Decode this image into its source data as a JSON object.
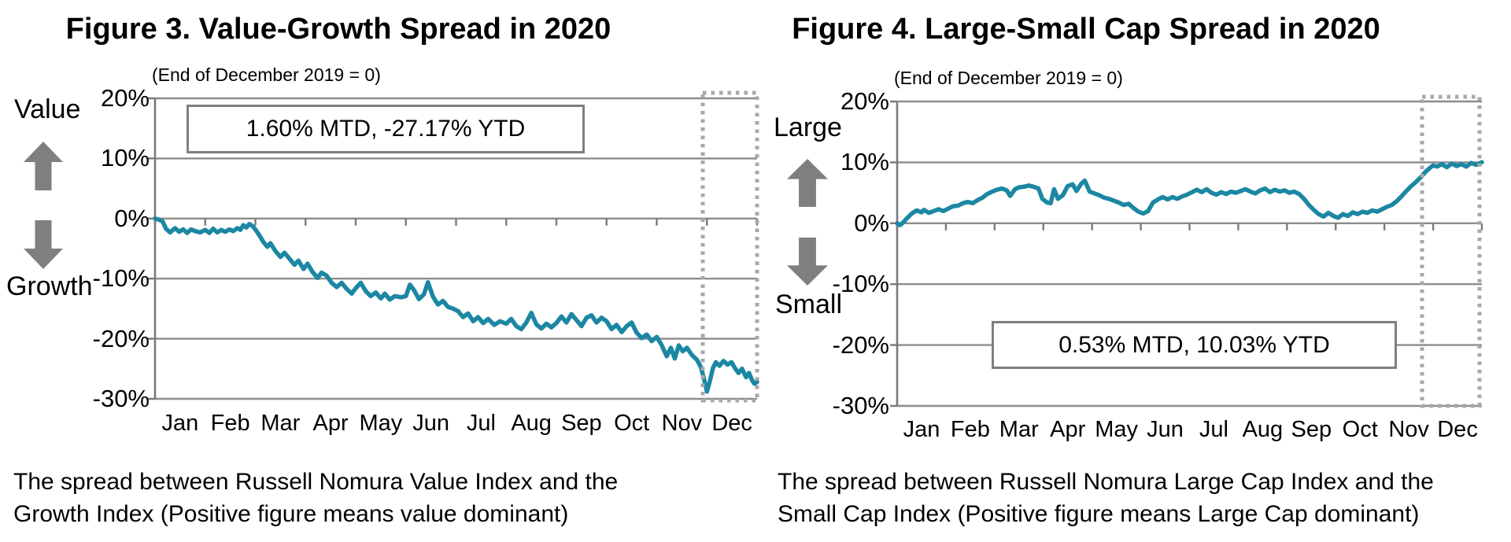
{
  "figures": [
    {
      "title": "Figure 3. Value-Growth Spread in 2020",
      "subtitle": "(End of December 2019 = 0)",
      "upper_label": "Value",
      "lower_label": "Growth",
      "annotation": "1.60% MTD, -27.17% YTD",
      "caption_line1": "The spread between Russell Nomura Value Index and the",
      "caption_line2": "Growth Index (Positive figure means value dominant)"
    },
    {
      "title": "Figure 4. Large-Small Cap Spread in 2020",
      "subtitle": "(End of December 2019 = 0)",
      "upper_label": "Large",
      "lower_label": "Small",
      "annotation": "0.53% MTD, 10.03% YTD",
      "caption_line1": "The spread between Russell Nomura Large Cap Index and the",
      "caption_line2": "Small Cap Index (Positive figure means Large Cap dominant)"
    }
  ],
  "colors": {
    "line": "#1b87a3",
    "gridline": "#8c8c8c",
    "axis": "#7a7a7a",
    "dotted_box": "#a8a8a8",
    "arrow": "#7f7f7f",
    "annotation_border": "#7f7f7f",
    "text": "#000000"
  },
  "chart_data": [
    {
      "type": "line",
      "title": "Figure 3. Value-Growth Spread in 2020",
      "subtitle": "(End of December 2019 = 0)",
      "series_name": "Russell Nomura Value Index minus Growth Index spread (%)",
      "x_unit": "months (0 = end of Dec 2019, 12 = end of Dec 2020)",
      "x_tick_labels": [
        "Jan",
        "Feb",
        "Mar",
        "Apr",
        "May",
        "Jun",
        "Jul",
        "Aug",
        "Sep",
        "Oct",
        "Nov",
        "Dec"
      ],
      "y_tick_labels": [
        "20%",
        "10%",
        "0%",
        "-10%",
        "-20%",
        "-30%"
      ],
      "y_ticks": [
        20,
        10,
        0,
        -10,
        -20,
        -30
      ],
      "ylim": [
        -30,
        20
      ],
      "grid": "horizontal",
      "legend": "none",
      "annotation": "1.60% MTD, -27.17% YTD",
      "highlight_box": "December (dotted rectangle)",
      "mtd_pct": 1.6,
      "ytd_pct": -27.17,
      "points": [
        [
          0,
          0
        ],
        [
          0.08,
          -0.2
        ],
        [
          0.15,
          -0.5
        ],
        [
          0.22,
          -1.7
        ],
        [
          0.3,
          -2.3
        ],
        [
          0.4,
          -1.6
        ],
        [
          0.48,
          -2.2
        ],
        [
          0.56,
          -1.8
        ],
        [
          0.64,
          -2.4
        ],
        [
          0.72,
          -1.8
        ],
        [
          0.8,
          -2.1
        ],
        [
          0.9,
          -2.3
        ],
        [
          1.0,
          -1.9
        ],
        [
          1.08,
          -2.4
        ],
        [
          1.16,
          -1.7
        ],
        [
          1.24,
          -2.3
        ],
        [
          1.32,
          -1.9
        ],
        [
          1.4,
          -2.2
        ],
        [
          1.48,
          -1.8
        ],
        [
          1.56,
          -2.1
        ],
        [
          1.64,
          -1.6
        ],
        [
          1.7,
          -1.9
        ],
        [
          1.76,
          -1.1
        ],
        [
          1.82,
          -1.5
        ],
        [
          1.88,
          -0.9
        ],
        [
          1.95,
          -1.3
        ],
        [
          2.0,
          -1.8
        ],
        [
          2.08,
          -2.8
        ],
        [
          2.16,
          -3.9
        ],
        [
          2.24,
          -4.7
        ],
        [
          2.3,
          -4.1
        ],
        [
          2.4,
          -5.4
        ],
        [
          2.5,
          -6.4
        ],
        [
          2.58,
          -5.7
        ],
        [
          2.68,
          -6.7
        ],
        [
          2.78,
          -7.7
        ],
        [
          2.86,
          -7.0
        ],
        [
          2.96,
          -8.4
        ],
        [
          3.04,
          -7.5
        ],
        [
          3.14,
          -8.9
        ],
        [
          3.24,
          -9.9
        ],
        [
          3.32,
          -9.0
        ],
        [
          3.42,
          -9.5
        ],
        [
          3.52,
          -10.7
        ],
        [
          3.62,
          -11.4
        ],
        [
          3.72,
          -10.7
        ],
        [
          3.82,
          -11.7
        ],
        [
          3.92,
          -12.5
        ],
        [
          4.0,
          -11.6
        ],
        [
          4.1,
          -10.7
        ],
        [
          4.2,
          -12.1
        ],
        [
          4.3,
          -12.9
        ],
        [
          4.4,
          -12.3
        ],
        [
          4.5,
          -13.3
        ],
        [
          4.58,
          -12.5
        ],
        [
          4.68,
          -13.5
        ],
        [
          4.78,
          -12.9
        ],
        [
          4.9,
          -13.1
        ],
        [
          5.0,
          -12.9
        ],
        [
          5.08,
          -11.0
        ],
        [
          5.16,
          -11.9
        ],
        [
          5.26,
          -13.4
        ],
        [
          5.36,
          -12.6
        ],
        [
          5.44,
          -10.6
        ],
        [
          5.54,
          -13.0
        ],
        [
          5.64,
          -14.3
        ],
        [
          5.74,
          -13.7
        ],
        [
          5.84,
          -14.7
        ],
        [
          5.94,
          -15.0
        ],
        [
          6.04,
          -15.4
        ],
        [
          6.14,
          -16.4
        ],
        [
          6.24,
          -15.8
        ],
        [
          6.34,
          -17.1
        ],
        [
          6.44,
          -16.4
        ],
        [
          6.54,
          -17.4
        ],
        [
          6.64,
          -16.7
        ],
        [
          6.76,
          -17.7
        ],
        [
          6.88,
          -17.1
        ],
        [
          7.0,
          -17.5
        ],
        [
          7.1,
          -16.7
        ],
        [
          7.2,
          -17.9
        ],
        [
          7.3,
          -18.4
        ],
        [
          7.4,
          -17.3
        ],
        [
          7.5,
          -15.7
        ],
        [
          7.6,
          -17.6
        ],
        [
          7.7,
          -18.3
        ],
        [
          7.8,
          -17.5
        ],
        [
          7.9,
          -18.1
        ],
        [
          8.0,
          -17.4
        ],
        [
          8.1,
          -16.3
        ],
        [
          8.2,
          -17.3
        ],
        [
          8.3,
          -15.9
        ],
        [
          8.4,
          -16.9
        ],
        [
          8.5,
          -17.9
        ],
        [
          8.6,
          -16.5
        ],
        [
          8.7,
          -16.1
        ],
        [
          8.8,
          -17.3
        ],
        [
          8.9,
          -16.5
        ],
        [
          9.0,
          -17.1
        ],
        [
          9.1,
          -18.4
        ],
        [
          9.2,
          -17.7
        ],
        [
          9.3,
          -18.9
        ],
        [
          9.4,
          -17.9
        ],
        [
          9.5,
          -17.3
        ],
        [
          9.6,
          -19.0
        ],
        [
          9.7,
          -19.9
        ],
        [
          9.8,
          -19.3
        ],
        [
          9.9,
          -20.4
        ],
        [
          10.0,
          -19.7
        ],
        [
          10.1,
          -21.1
        ],
        [
          10.2,
          -22.9
        ],
        [
          10.28,
          -21.5
        ],
        [
          10.36,
          -23.3
        ],
        [
          10.44,
          -21.1
        ],
        [
          10.52,
          -22.1
        ],
        [
          10.6,
          -21.5
        ],
        [
          10.7,
          -22.7
        ],
        [
          10.8,
          -23.5
        ],
        [
          10.88,
          -24.7
        ],
        [
          10.94,
          -26.6
        ],
        [
          11.0,
          -28.8
        ],
        [
          11.06,
          -27.0
        ],
        [
          11.12,
          -24.9
        ],
        [
          11.18,
          -23.9
        ],
        [
          11.25,
          -24.5
        ],
        [
          11.33,
          -23.7
        ],
        [
          11.41,
          -24.3
        ],
        [
          11.49,
          -23.9
        ],
        [
          11.56,
          -24.9
        ],
        [
          11.63,
          -25.7
        ],
        [
          11.7,
          -25.0
        ],
        [
          11.78,
          -26.4
        ],
        [
          11.84,
          -25.7
        ],
        [
          11.9,
          -26.9
        ],
        [
          11.95,
          -27.5
        ],
        [
          12.0,
          -27.17
        ]
      ]
    },
    {
      "type": "line",
      "title": "Figure 4. Large-Small Cap Spread in 2020",
      "subtitle": "(End of December 2019 = 0)",
      "series_name": "Russell Nomura Large Cap Index minus Small Cap Index spread (%)",
      "x_unit": "months (0 = end of Dec 2019, 12 = end of Dec 2020)",
      "x_tick_labels": [
        "Jan",
        "Feb",
        "Mar",
        "Apr",
        "May",
        "Jun",
        "Jul",
        "Aug",
        "Sep",
        "Oct",
        "Nov",
        "Dec"
      ],
      "y_tick_labels": [
        "20%",
        "10%",
        "0%",
        "-10%",
        "-20%",
        "-30%"
      ],
      "y_ticks": [
        20,
        10,
        0,
        -10,
        -20,
        -30
      ],
      "ylim": [
        -30,
        20
      ],
      "grid": "horizontal",
      "legend": "none",
      "annotation": "0.53% MTD, 10.03% YTD",
      "highlight_box": "December (dotted rectangle)",
      "mtd_pct": 0.53,
      "ytd_pct": 10.03,
      "points": [
        [
          0,
          0
        ],
        [
          0.06,
          -0.3
        ],
        [
          0.12,
          0.1
        ],
        [
          0.2,
          0.8
        ],
        [
          0.3,
          1.6
        ],
        [
          0.4,
          2.1
        ],
        [
          0.5,
          1.8
        ],
        [
          0.55,
          2.2
        ],
        [
          0.65,
          1.7
        ],
        [
          0.75,
          2.0
        ],
        [
          0.85,
          2.3
        ],
        [
          0.95,
          2.0
        ],
        [
          1.05,
          2.4
        ],
        [
          1.15,
          2.8
        ],
        [
          1.25,
          2.9
        ],
        [
          1.35,
          3.3
        ],
        [
          1.45,
          3.5
        ],
        [
          1.55,
          3.3
        ],
        [
          1.65,
          3.8
        ],
        [
          1.75,
          4.2
        ],
        [
          1.85,
          4.8
        ],
        [
          1.95,
          5.2
        ],
        [
          2.05,
          5.5
        ],
        [
          2.15,
          5.7
        ],
        [
          2.25,
          5.4
        ],
        [
          2.32,
          4.5
        ],
        [
          2.42,
          5.6
        ],
        [
          2.5,
          5.9
        ],
        [
          2.6,
          6.0
        ],
        [
          2.7,
          6.2
        ],
        [
          2.8,
          6.0
        ],
        [
          2.9,
          5.7
        ],
        [
          2.98,
          4.0
        ],
        [
          3.08,
          3.4
        ],
        [
          3.15,
          3.3
        ],
        [
          3.22,
          5.6
        ],
        [
          3.3,
          4.0
        ],
        [
          3.4,
          4.6
        ],
        [
          3.5,
          6.1
        ],
        [
          3.6,
          6.4
        ],
        [
          3.68,
          5.3
        ],
        [
          3.78,
          6.5
        ],
        [
          3.85,
          7.0
        ],
        [
          3.95,
          5.2
        ],
        [
          4.05,
          4.9
        ],
        [
          4.15,
          4.6
        ],
        [
          4.25,
          4.2
        ],
        [
          4.35,
          4.0
        ],
        [
          4.45,
          3.7
        ],
        [
          4.55,
          3.4
        ],
        [
          4.65,
          3.0
        ],
        [
          4.75,
          3.2
        ],
        [
          4.85,
          2.5
        ],
        [
          4.95,
          1.9
        ],
        [
          5.05,
          1.6
        ],
        [
          5.15,
          2.0
        ],
        [
          5.25,
          3.4
        ],
        [
          5.35,
          3.9
        ],
        [
          5.45,
          4.3
        ],
        [
          5.55,
          3.9
        ],
        [
          5.65,
          4.3
        ],
        [
          5.75,
          4.0
        ],
        [
          5.85,
          4.4
        ],
        [
          5.95,
          4.7
        ],
        [
          6.05,
          5.1
        ],
        [
          6.15,
          5.5
        ],
        [
          6.25,
          5.1
        ],
        [
          6.35,
          5.6
        ],
        [
          6.45,
          5.0
        ],
        [
          6.55,
          4.7
        ],
        [
          6.65,
          5.1
        ],
        [
          6.75,
          4.8
        ],
        [
          6.85,
          5.2
        ],
        [
          6.95,
          5.0
        ],
        [
          7.05,
          5.3
        ],
        [
          7.15,
          5.6
        ],
        [
          7.25,
          5.2
        ],
        [
          7.35,
          4.9
        ],
        [
          7.45,
          5.4
        ],
        [
          7.55,
          5.7
        ],
        [
          7.65,
          5.1
        ],
        [
          7.75,
          5.5
        ],
        [
          7.85,
          5.2
        ],
        [
          7.95,
          5.4
        ],
        [
          8.05,
          5.0
        ],
        [
          8.15,
          5.2
        ],
        [
          8.25,
          4.8
        ],
        [
          8.35,
          4.0
        ],
        [
          8.45,
          3.0
        ],
        [
          8.55,
          2.2
        ],
        [
          8.65,
          1.5
        ],
        [
          8.75,
          1.1
        ],
        [
          8.85,
          1.7
        ],
        [
          8.95,
          1.2
        ],
        [
          9.05,
          0.9
        ],
        [
          9.15,
          1.5
        ],
        [
          9.25,
          1.2
        ],
        [
          9.35,
          1.8
        ],
        [
          9.45,
          1.5
        ],
        [
          9.55,
          1.9
        ],
        [
          9.65,
          1.7
        ],
        [
          9.75,
          2.1
        ],
        [
          9.85,
          1.9
        ],
        [
          9.95,
          2.3
        ],
        [
          10.05,
          2.7
        ],
        [
          10.15,
          3.0
        ],
        [
          10.25,
          3.6
        ],
        [
          10.35,
          4.4
        ],
        [
          10.45,
          5.3
        ],
        [
          10.55,
          6.1
        ],
        [
          10.65,
          6.8
        ],
        [
          10.75,
          7.6
        ],
        [
          10.85,
          8.5
        ],
        [
          10.95,
          9.2
        ],
        [
          11.0,
          9.5
        ],
        [
          11.08,
          9.3
        ],
        [
          11.18,
          9.7
        ],
        [
          11.28,
          9.2
        ],
        [
          11.38,
          9.8
        ],
        [
          11.48,
          9.4
        ],
        [
          11.58,
          9.7
        ],
        [
          11.68,
          9.3
        ],
        [
          11.78,
          9.9
        ],
        [
          11.88,
          9.6
        ],
        [
          12.0,
          10.03
        ]
      ]
    }
  ]
}
